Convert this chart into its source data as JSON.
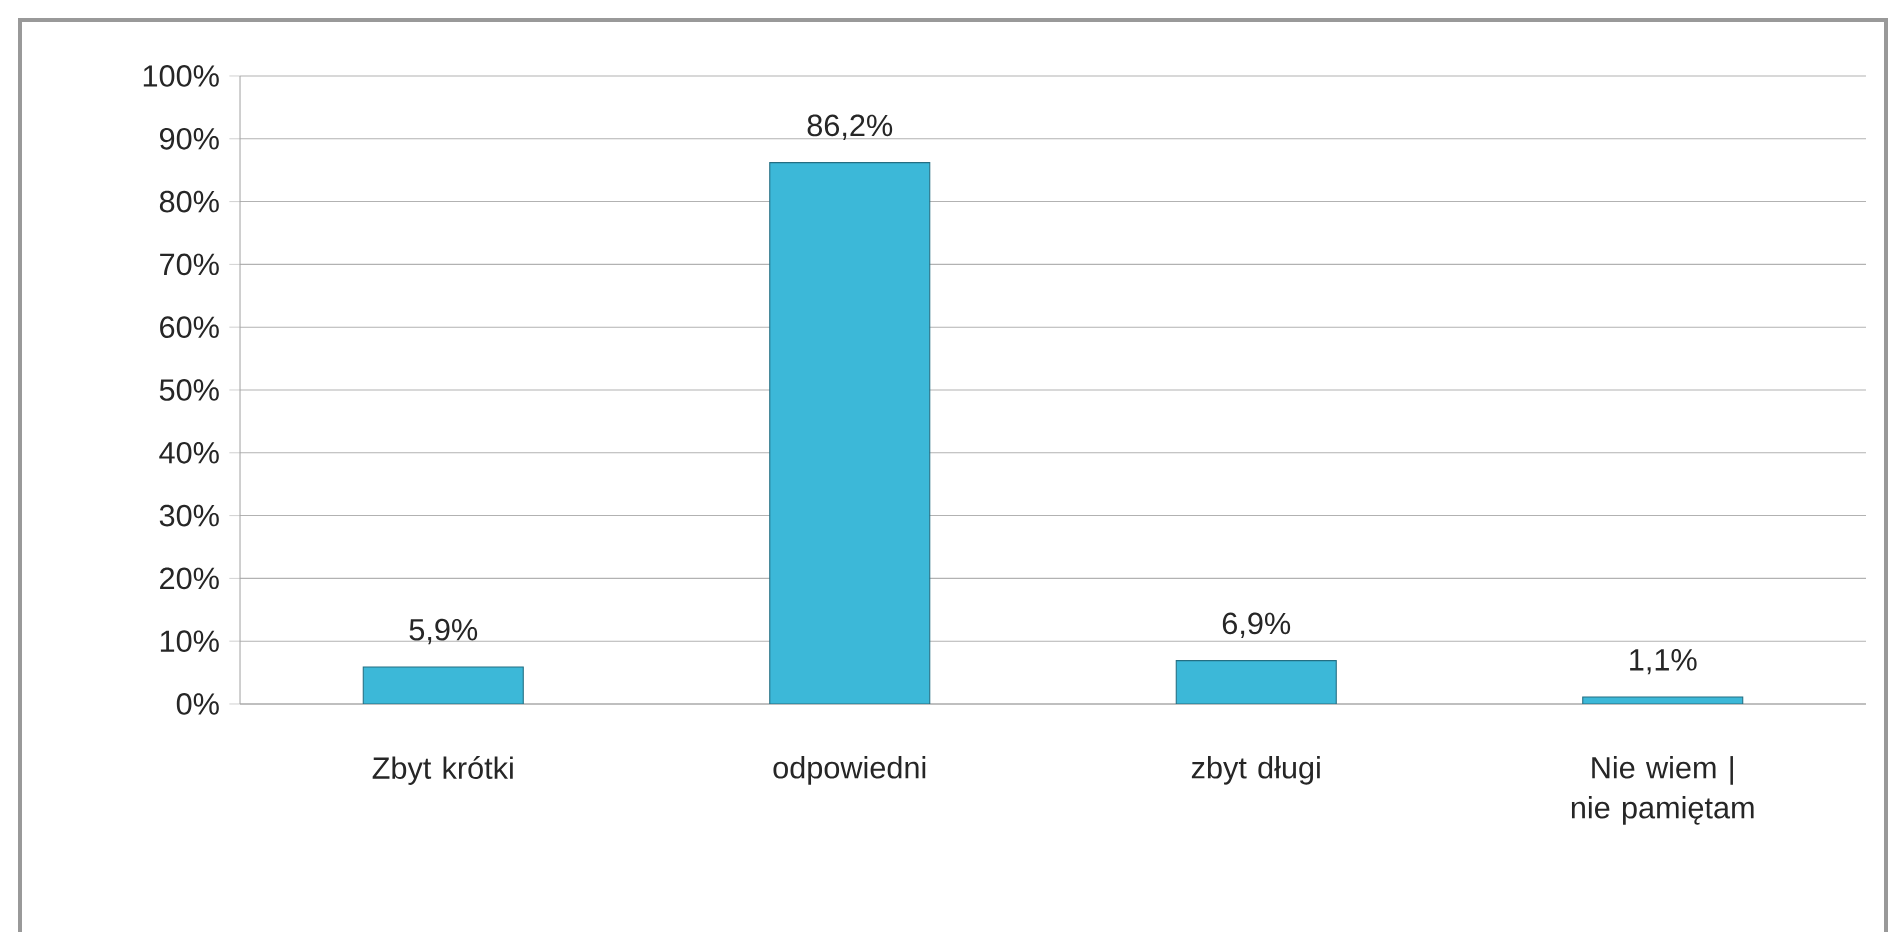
{
  "chart_data": {
    "type": "bar",
    "categories": [
      "Zbyt krótki",
      "odpowiedni",
      "zbyt długi",
      "Nie wiem | nie pamiętam"
    ],
    "values": [
      5.9,
      86.2,
      6.9,
      1.1
    ],
    "value_labels": [
      "5,9%",
      "86,2%",
      "6,9%",
      "1,1%"
    ],
    "color": "#3cb8d8",
    "ylim": [
      0,
      100
    ],
    "yticks": [
      {
        "value": 0,
        "label": "0%"
      },
      {
        "value": 10,
        "label": "10%"
      },
      {
        "value": 20,
        "label": "20%"
      },
      {
        "value": 30,
        "label": "30%"
      },
      {
        "value": 40,
        "label": "40%"
      },
      {
        "value": 50,
        "label": "50%"
      },
      {
        "value": 60,
        "label": "60%"
      },
      {
        "value": 70,
        "label": "70%"
      },
      {
        "value": 80,
        "label": "80%"
      },
      {
        "value": 90,
        "label": "90%"
      },
      {
        "value": 100,
        "label": "100%"
      }
    ],
    "grid": "y"
  }
}
